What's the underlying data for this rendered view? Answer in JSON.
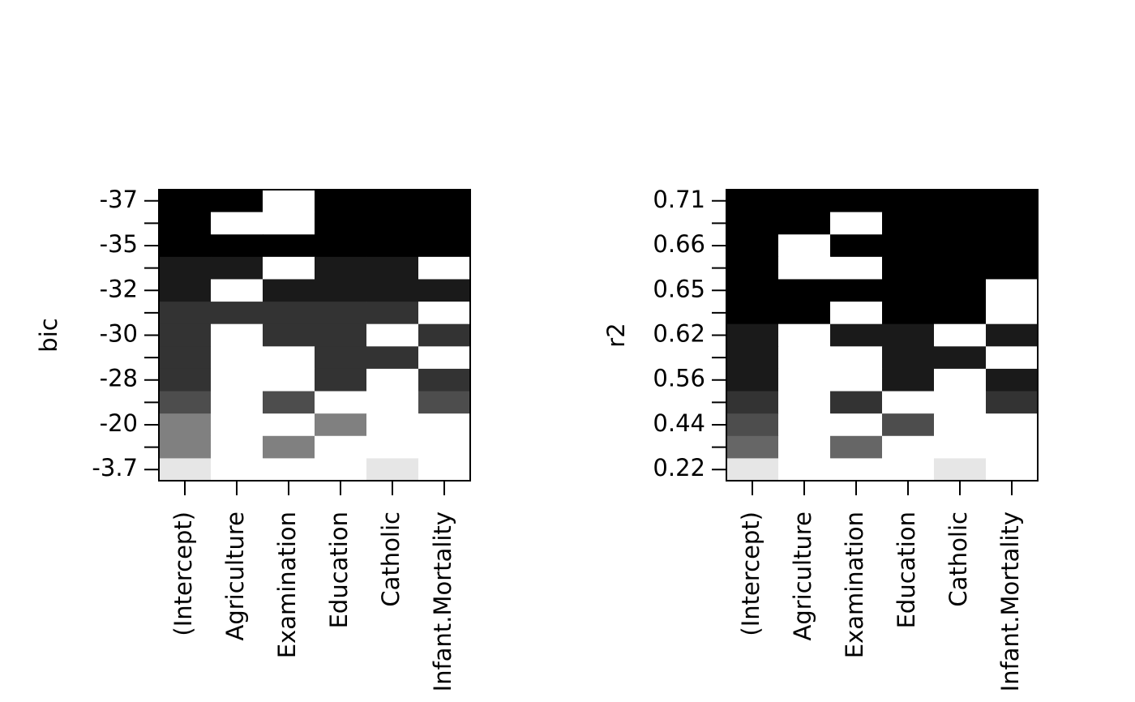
{
  "chart_data": [
    {
      "type": "heatmap",
      "ylabel": "bic",
      "categories": [
        "(Intercept)",
        "Agriculture",
        "Examination",
        "Education",
        "Catholic",
        "Infant.Mortality"
      ],
      "rows": [
        "-37",
        null,
        "-35",
        null,
        "-32",
        null,
        "-30",
        null,
        "-28",
        null,
        "-20",
        null,
        "-3.7"
      ],
      "row_colors": [
        "#000000",
        "#000000",
        "#000000",
        "#1a1a1a",
        "#1a1a1a",
        "#333333",
        "#333333",
        "#333333",
        "#333333",
        "#4d4d4d",
        "#808080",
        "#808080",
        "#e6e6e6"
      ],
      "included": [
        [
          1,
          1,
          0,
          1,
          1,
          1
        ],
        [
          1,
          0,
          0,
          1,
          1,
          1
        ],
        [
          1,
          1,
          1,
          1,
          1,
          1
        ],
        [
          1,
          1,
          0,
          1,
          1,
          0
        ],
        [
          1,
          0,
          1,
          1,
          1,
          1
        ],
        [
          1,
          1,
          1,
          1,
          1,
          0
        ],
        [
          1,
          0,
          1,
          1,
          0,
          1
        ],
        [
          1,
          0,
          0,
          1,
          1,
          0
        ],
        [
          1,
          0,
          0,
          1,
          0,
          1
        ],
        [
          1,
          0,
          1,
          0,
          0,
          1
        ],
        [
          1,
          0,
          0,
          1,
          0,
          0
        ],
        [
          1,
          0,
          1,
          0,
          0,
          0
        ],
        [
          1,
          0,
          0,
          0,
          1,
          0
        ]
      ]
    },
    {
      "type": "heatmap",
      "ylabel": "r2",
      "categories": [
        "(Intercept)",
        "Agriculture",
        "Examination",
        "Education",
        "Catholic",
        "Infant.Mortality"
      ],
      "rows": [
        "0.71",
        null,
        "0.66",
        null,
        "0.65",
        null,
        "0.62",
        null,
        "0.56",
        null,
        "0.44",
        null,
        "0.22"
      ],
      "row_colors": [
        "#000000",
        "#000000",
        "#000000",
        "#000000",
        "#000000",
        "#000000",
        "#1a1a1a",
        "#1a1a1a",
        "#1a1a1a",
        "#333333",
        "#4d4d4d",
        "#666666",
        "#e6e6e6"
      ],
      "included": [
        [
          1,
          1,
          1,
          1,
          1,
          1
        ],
        [
          1,
          1,
          0,
          1,
          1,
          1
        ],
        [
          1,
          0,
          1,
          1,
          1,
          1
        ],
        [
          1,
          0,
          0,
          1,
          1,
          1
        ],
        [
          1,
          1,
          1,
          1,
          1,
          0
        ],
        [
          1,
          1,
          0,
          1,
          1,
          0
        ],
        [
          1,
          0,
          1,
          1,
          0,
          1
        ],
        [
          1,
          0,
          0,
          1,
          1,
          0
        ],
        [
          1,
          0,
          0,
          1,
          0,
          1
        ],
        [
          1,
          0,
          1,
          0,
          0,
          1
        ],
        [
          1,
          0,
          0,
          1,
          0,
          0
        ],
        [
          1,
          0,
          1,
          0,
          0,
          0
        ],
        [
          1,
          0,
          0,
          0,
          1,
          0
        ]
      ]
    }
  ]
}
